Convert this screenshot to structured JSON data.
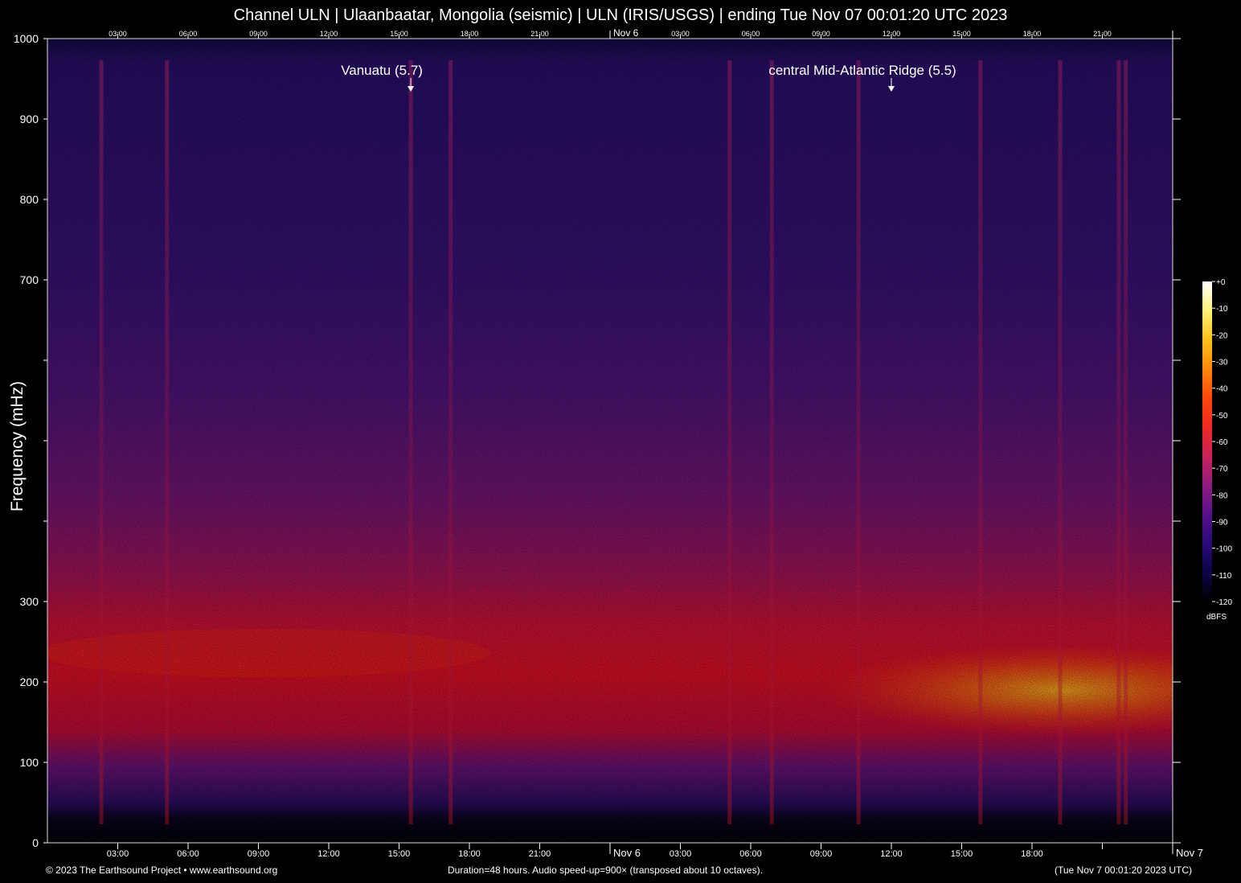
{
  "title": "Channel ULN | Ulaanbaatar, Mongolia (seismic) | ULN (IRIS/USGS) | ending Tue Nov 07 00:01:20 UTC 2023",
  "footer": {
    "left": "© 2023 The Earthsound Project • www.earthsound.org",
    "center": "Duration=48 hours. Audio speed-up=900× (transposed about 10 octaves).",
    "right": "(Tue Nov  7 00:01:20 2023 UTC)"
  },
  "chart_data": {
    "type": "heatmap",
    "title": "Channel ULN | Ulaanbaatar, Mongolia (seismic) | ULN (IRIS/USGS) | ending Tue Nov 07 00:01:20 UTC 2023",
    "ylabel": "Frequency (mHz)",
    "ylim": [
      0,
      1000
    ],
    "y_ticks": [
      0,
      100,
      200,
      300,
      400,
      500,
      600,
      700,
      800,
      900,
      1000
    ],
    "y_tick_labels": [
      "0",
      "100",
      "200",
      "300",
      "",
      "",
      "",
      "700",
      "800",
      "900",
      "1000"
    ],
    "x_range_hours": [
      0,
      48
    ],
    "x_tick_hours": [
      3,
      6,
      9,
      12,
      15,
      18,
      21,
      24,
      27,
      30,
      33,
      36,
      39,
      42,
      45,
      48
    ],
    "x_tick_labels_bottom": [
      "03:00",
      "06:00",
      "09:00",
      "12:00",
      "15:00",
      "18:00",
      "21:00",
      "Nov  6",
      "03:00",
      "06:00",
      "09:00",
      "12:00",
      "15:00",
      "18:00",
      "",
      "Nov  7"
    ],
    "x_tick_labels_top": [
      "03:00",
      "06:00",
      "09:00",
      "12:00",
      "15:00",
      "18:00",
      "21:00",
      "Nov  6",
      "03:00",
      "06:00",
      "09:00",
      "12:00",
      "15:00",
      "18:00",
      "21:00",
      ""
    ],
    "annotations": [
      {
        "label": "Vanuatu (5.7)",
        "hour": 15.5
      },
      {
        "label": "central Mid-Atlantic Ridge (5.5)",
        "hour": 36.0
      }
    ],
    "colorbar": {
      "unit": "dBFS",
      "range": [
        -120,
        0
      ],
      "ticks": [
        "+0",
        "-10",
        "-20",
        "-30",
        "-40",
        "-50",
        "-60",
        "-70",
        "-80",
        "-90",
        "-100",
        "-110",
        "-120"
      ],
      "colors": [
        "#000000",
        "#0b0447",
        "#2a0a7a",
        "#57108c",
        "#8e1b80",
        "#c6225c",
        "#f02a1f",
        "#ff4a0a",
        "#ff8a0a",
        "#ffc21a",
        "#fff27a",
        "#ffffff"
      ]
    },
    "background_level_dbfs": -90,
    "noise_band": {
      "center_mHz": 220,
      "peak_dbfs": -55
    },
    "vertical_events_hours": [
      2.3,
      5.1,
      15.5,
      17.2,
      29.1,
      30.9,
      34.6,
      39.8,
      43.2,
      45.7,
      46.0
    ]
  }
}
